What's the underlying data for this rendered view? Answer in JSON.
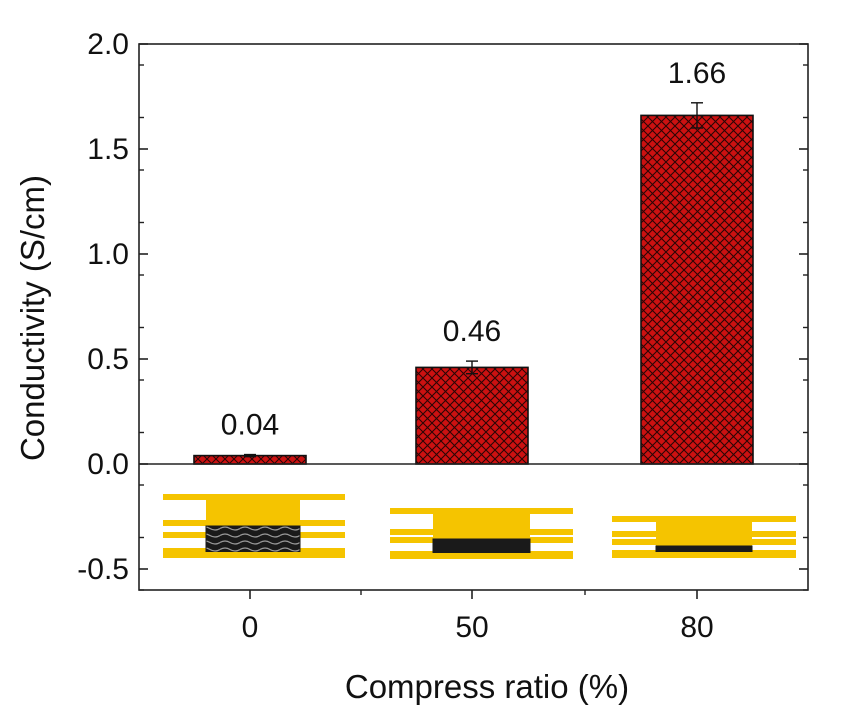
{
  "chart_data": {
    "type": "bar",
    "categories": [
      "0",
      "50",
      "80"
    ],
    "values": [
      0.04,
      0.46,
      1.66
    ],
    "errors": [
      0.005,
      0.03,
      0.06
    ],
    "data_labels": [
      "0.04",
      "0.46",
      "1.66"
    ],
    "ylabel": "Conductivity (S/cm)",
    "xlabel": "Compress ratio (%)",
    "ylim": [
      -0.6,
      2.0
    ],
    "yticks": [
      -0.5,
      0.0,
      0.5,
      1.0,
      1.5,
      2.0
    ],
    "ytick_labels": [
      "-0.5",
      "0.0",
      "0.5",
      "1.0",
      "1.5",
      "2.0"
    ],
    "grid": false,
    "bar_fill": "#cc1111",
    "bar_hatch": "crosshatch",
    "illustration_colors": {
      "plate": "#f5c400",
      "compressed_layer": "#1a1a1a"
    }
  }
}
